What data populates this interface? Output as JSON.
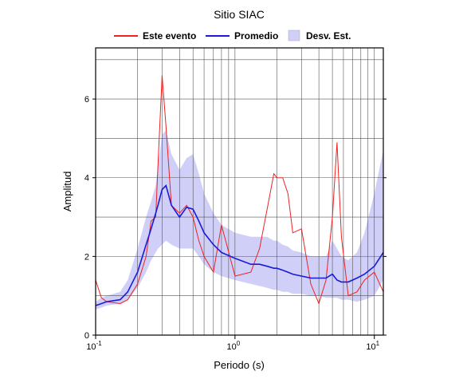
{
  "chart_data": {
    "type": "line",
    "title": "Sitio SIAC",
    "xlabel": "Periodo (s)",
    "ylabel": "Amplitud",
    "xscale": "log",
    "grid": true,
    "xlim": [
      0.1,
      11.6
    ],
    "ylim": [
      0,
      7.3
    ],
    "xticks": [
      {
        "value": 0.1,
        "label": "10",
        "exponent": "-1"
      },
      {
        "value": 1,
        "label": "10",
        "exponent": "0"
      },
      {
        "value": 10,
        "label": "10",
        "exponent": "1"
      }
    ],
    "yticks": [
      0,
      2,
      4,
      6
    ],
    "xgrid": [
      0.2,
      0.3,
      0.4,
      0.5,
      0.6,
      0.7,
      0.8,
      0.9,
      1,
      2,
      3,
      4,
      5,
      6,
      7,
      8,
      9,
      10
    ],
    "ygrid": [
      1,
      2,
      3,
      4,
      5,
      6,
      7
    ],
    "x": [
      0.1,
      0.11,
      0.12,
      0.15,
      0.17,
      0.2,
      0.23,
      0.25,
      0.27,
      0.28,
      0.3,
      0.32,
      0.35,
      0.4,
      0.45,
      0.5,
      0.55,
      0.6,
      0.7,
      0.8,
      1.0,
      1.3,
      1.5,
      1.7,
      1.9,
      2.0,
      2.2,
      2.4,
      2.6,
      3.0,
      3.5,
      4.0,
      4.5,
      5.0,
      5.4,
      5.8,
      6.5,
      7.5,
      8.5,
      10,
      11.6
    ],
    "series": [
      {
        "name": "Este evento",
        "color": "#ee2222",
        "kind": "line",
        "values": [
          1.4,
          0.95,
          0.85,
          0.8,
          0.9,
          1.3,
          2.0,
          2.9,
          3.0,
          4.3,
          6.6,
          5.3,
          3.3,
          3.1,
          3.3,
          3.0,
          2.4,
          2.0,
          1.6,
          2.8,
          1.5,
          1.6,
          2.2,
          3.2,
          4.1,
          4.0,
          4.0,
          3.6,
          2.6,
          2.7,
          1.3,
          0.8,
          1.4,
          3.0,
          4.9,
          2.5,
          1.0,
          1.1,
          1.4,
          1.6,
          1.1
        ]
      },
      {
        "name": "Promedio",
        "color": "#1a1adb",
        "kind": "line",
        "values": [
          0.75,
          0.8,
          0.85,
          0.9,
          1.1,
          1.6,
          2.3,
          2.7,
          3.1,
          3.3,
          3.7,
          3.8,
          3.3,
          3.0,
          3.25,
          3.2,
          2.9,
          2.6,
          2.3,
          2.1,
          1.95,
          1.8,
          1.8,
          1.75,
          1.7,
          1.7,
          1.65,
          1.6,
          1.55,
          1.5,
          1.45,
          1.45,
          1.45,
          1.55,
          1.4,
          1.35,
          1.35,
          1.45,
          1.55,
          1.75,
          2.1
        ]
      },
      {
        "name": "Desv. Est.",
        "color": "#cfcff7",
        "kind": "band",
        "lower": [
          0.65,
          0.7,
          0.75,
          0.8,
          0.9,
          1.2,
          1.6,
          1.9,
          2.1,
          2.2,
          2.3,
          2.4,
          2.3,
          2.2,
          2.2,
          2.2,
          2.0,
          1.8,
          1.6,
          1.5,
          1.4,
          1.3,
          1.25,
          1.2,
          1.15,
          1.15,
          1.1,
          1.1,
          1.05,
          1.05,
          1.0,
          1.0,
          0.95,
          0.95,
          0.95,
          0.9,
          0.9,
          0.85,
          0.9,
          1.0,
          1.4
        ],
        "upper": [
          0.85,
          0.95,
          1.0,
          1.1,
          1.4,
          2.2,
          3.0,
          3.4,
          3.8,
          4.3,
          5.1,
          5.2,
          4.6,
          4.2,
          4.5,
          4.6,
          4.1,
          3.6,
          3.1,
          2.8,
          2.6,
          2.5,
          2.5,
          2.5,
          2.4,
          2.4,
          2.3,
          2.25,
          2.15,
          2.1,
          2.0,
          2.0,
          2.0,
          2.4,
          2.2,
          2.0,
          1.9,
          2.1,
          2.6,
          3.6,
          4.7
        ]
      }
    ]
  }
}
